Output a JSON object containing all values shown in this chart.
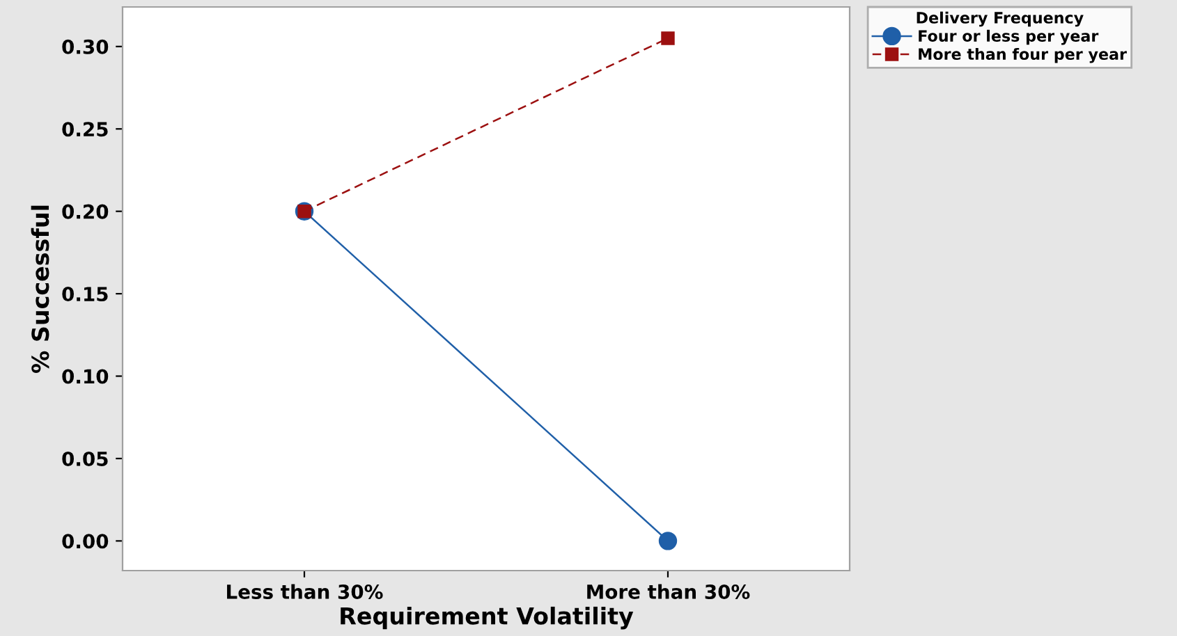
{
  "chart_data": {
    "type": "line",
    "xlabel": "Requirement Volatility",
    "ylabel": "% Successful",
    "legend_title": "Delivery Frequency",
    "legend": "top right",
    "categories": [
      "Less than 30%",
      "More than 30%"
    ],
    "series": [
      {
        "name": "Four or less per year",
        "color": "#1f5fa8",
        "values": [
          0.2,
          0.0
        ],
        "marker": "circle",
        "line_style": "solid"
      },
      {
        "name": "More than four per year",
        "color": "#9c1010",
        "values": [
          0.2,
          0.305
        ],
        "marker": "square",
        "line_style": "dashed"
      }
    ],
    "ylim": [
      -0.018,
      0.324
    ],
    "yticks": [
      {
        "value": 0,
        "label": "0.00"
      },
      {
        "value": 0.05,
        "label": "0.05"
      },
      {
        "value": 0.1,
        "label": "0.10"
      },
      {
        "value": 0.15,
        "label": "0.15"
      },
      {
        "value": 0.2,
        "label": "0.20"
      },
      {
        "value": 0.25,
        "label": "0.25"
      },
      {
        "value": 0.3,
        "label": "0.30"
      }
    ],
    "grid": false
  }
}
